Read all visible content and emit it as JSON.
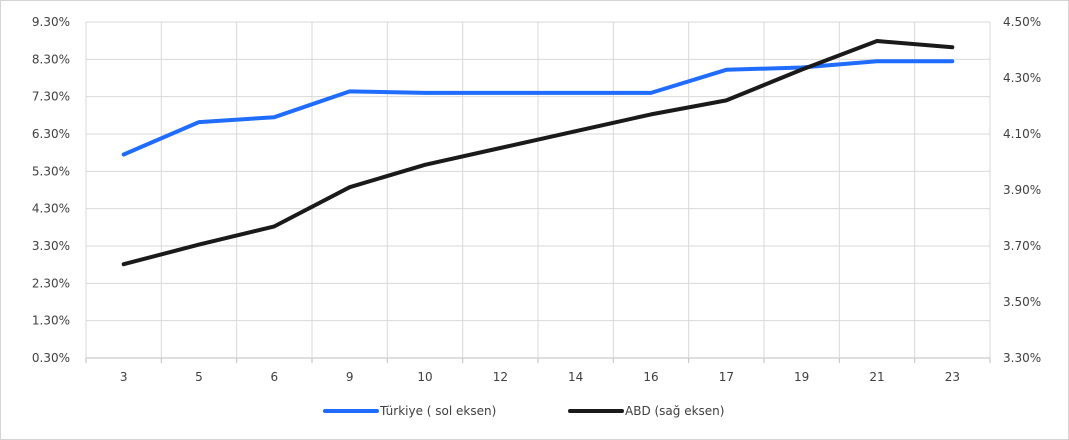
{
  "chart_data": {
    "type": "line",
    "categories": [
      "3",
      "5",
      "6",
      "9",
      "10",
      "12",
      "14",
      "16",
      "17",
      "19",
      "21",
      "23"
    ],
    "series": [
      {
        "name": "Türkiye ( sol eksen)",
        "axis": "left",
        "color": "#1f6cff",
        "values": [
          5.75,
          6.62,
          6.75,
          7.44,
          7.4,
          7.4,
          7.4,
          7.4,
          8.02,
          8.08,
          8.25,
          8.25
        ]
      },
      {
        "name": "ABD (sağ eksen)",
        "axis": "right",
        "color": "#1a1a1a",
        "values": [
          3.635,
          3.705,
          3.77,
          3.91,
          3.99,
          4.05,
          4.11,
          4.17,
          4.22,
          4.33,
          4.432,
          4.41
        ]
      }
    ],
    "y_left": {
      "range": [
        0.3,
        9.3
      ],
      "ticks": [
        0.3,
        1.3,
        2.3,
        3.3,
        4.3,
        5.3,
        6.3,
        7.3,
        8.3,
        9.3
      ],
      "tick_labels": [
        "0.30%",
        "1.30%",
        "2.30%",
        "3.30%",
        "4.30%",
        "5.30%",
        "6.30%",
        "7.30%",
        "8.30%",
        "9.30%"
      ]
    },
    "y_right": {
      "range": [
        3.3,
        4.5
      ],
      "ticks": [
        3.3,
        3.5,
        3.7,
        3.9,
        4.1,
        4.3,
        4.5
      ],
      "tick_labels": [
        "3.30%",
        "3.50%",
        "3.70%",
        "3.90%",
        "4.10%",
        "4.30%",
        "4.50%"
      ]
    },
    "grid": true,
    "legend_position": "bottom",
    "title": "",
    "xlabel": "",
    "ylabel": ""
  }
}
